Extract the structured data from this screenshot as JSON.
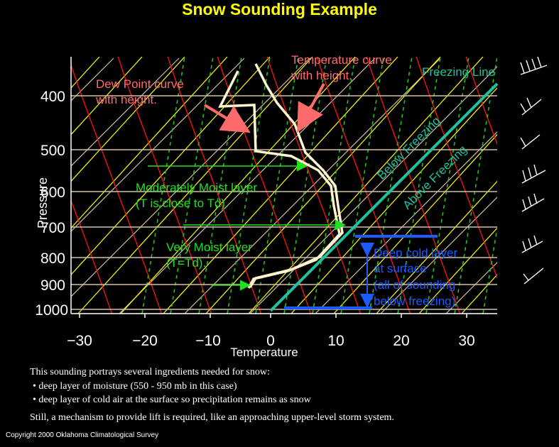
{
  "title": "Snow Sounding Example",
  "pressure_labels": [
    "400",
    "500",
    "600",
    "700",
    "800",
    "900",
    "1000"
  ],
  "pressure_axis_label": "Pressure",
  "temperature_labels": [
    "−30",
    "−20",
    "−10",
    "0",
    "10",
    "20",
    "30"
  ],
  "temperature_axis_label": "Temperature",
  "annotations": {
    "dew_point_1": "Dew Point curve",
    "dew_point_2": "with height.",
    "temp_curve_1": "Temperature curve",
    "temp_curve_2": "with height.",
    "freezing_line": "Freezing Line",
    "below_freezing": "Below Freezing",
    "above_freezing": "Above Freezing",
    "moderately_moist_1": "Moderately Moist layer",
    "moderately_moist_2": "(T is close to Td).",
    "very_moist_1": "Very Moist layer",
    "very_moist_2": "(T=Td).",
    "deep_cold_1": "Deep cold layer",
    "deep_cold_2": "at surface",
    "deep_cold_3": "(all of sounding",
    "deep_cold_4": "below freezing)"
  },
  "description": {
    "intro": "This sounding portrays several ingredients needed for snow:",
    "bullet_1": "deep layer of moisture (550 - 950 mb in this case)",
    "bullet_2": "deep layer of cold air at the surface so precipitation remains as snow",
    "closing": "Still, a mechanism to provide lift is required, like an approaching upper-level storm system."
  },
  "copyright": "Copyright 2000 Oklahoma Climatological Survey",
  "colors": {
    "title": "#ffff00",
    "isotherm": "#d0c0a0",
    "dry_adiabat": "#ffff00",
    "moist_adiabat": "#ff1010",
    "mixing_ratio": "#20c020",
    "freezing_line": "#20c0a0",
    "annotation_red": "#ff6b6b",
    "annotation_green": "#20e020",
    "annotation_blue": "#1a5cff",
    "sounding": "#fff5d0"
  }
}
